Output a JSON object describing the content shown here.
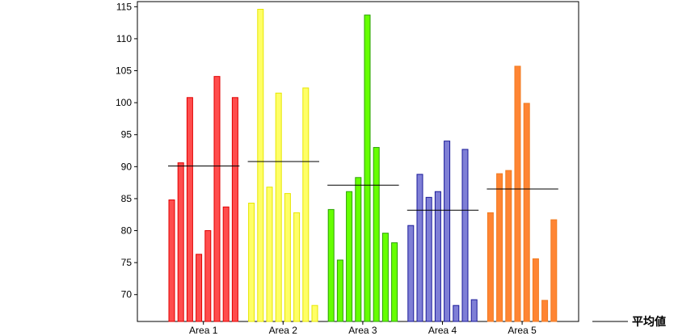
{
  "chart_data": {
    "type": "bar",
    "title": "",
    "xlabel": "",
    "ylabel": "",
    "ylim": [
      65.8,
      115.8
    ],
    "yticks": [
      70,
      75,
      80,
      85,
      90,
      95,
      100,
      105,
      110,
      115
    ],
    "grid": false,
    "legend": {
      "placement": "bottom-right",
      "label": "平均値"
    },
    "groups": [
      {
        "name": "Area 1",
        "color": "#ff4d4d",
        "edge": "#e00000",
        "values": [
          84.8,
          90.6,
          100.8,
          76.3,
          80.0,
          104.1,
          83.7,
          100.8
        ],
        "mean": 90.1
      },
      {
        "name": "Area 2",
        "color": "#ffff66",
        "edge": "#e6e600",
        "values": [
          84.3,
          114.6,
          86.8,
          101.5,
          85.8,
          82.8,
          102.3,
          68.3
        ],
        "mean": 90.8
      },
      {
        "name": "Area 3",
        "color": "#66ff00",
        "edge": "#2aa100",
        "values": [
          83.3,
          75.4,
          86.1,
          88.3,
          113.7,
          93.0,
          79.6,
          78.1
        ],
        "mean": 87.1
      },
      {
        "name": "Area 4",
        "color": "#7f7fd6",
        "edge": "#1a1a99",
        "values": [
          80.8,
          88.8,
          85.2,
          86.1,
          94.0,
          68.3,
          92.7,
          69.2
        ],
        "mean": 83.2
      },
      {
        "name": "Area 5",
        "color": "#ff8533",
        "edge": "#f07a20",
        "values": [
          82.8,
          88.9,
          89.4,
          105.7,
          99.9,
          75.6,
          69.1,
          81.7
        ],
        "mean": 86.5
      }
    ]
  }
}
